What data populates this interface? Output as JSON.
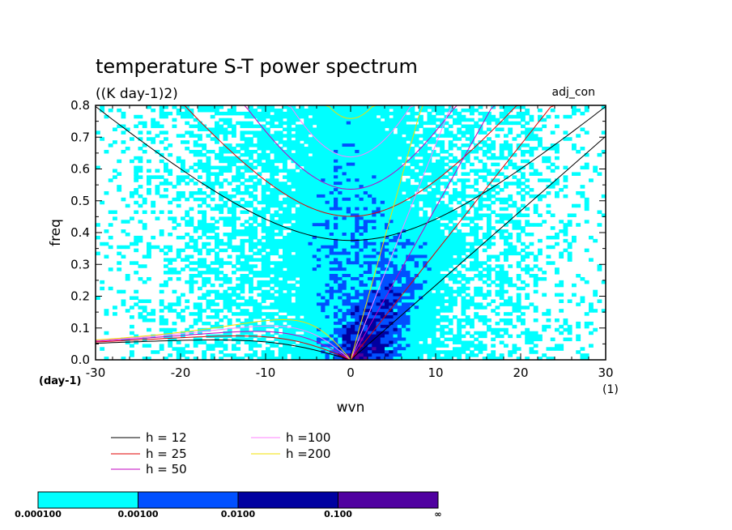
{
  "chart_data": {
    "type": "contour",
    "title": "temperature S-T power spectrum",
    "subtitle": "((K day-1)2)",
    "annotation": "adj_con",
    "xlabel": "wvn",
    "ylabel": "freq",
    "x_unit": "(1)",
    "y_unit": "(day-1)",
    "xlim": [
      -30,
      30
    ],
    "ylim": [
      0,
      0.8
    ],
    "x_ticks": [
      "-30",
      "-20",
      "-10",
      "0",
      "10",
      "20",
      "30"
    ],
    "y_ticks": [
      "0.0",
      "0.1",
      "0.2",
      "0.3",
      "0.4",
      "0.5",
      "0.6",
      "0.7",
      "0.8"
    ],
    "dispersion_curves": [
      {
        "name": "h = 12",
        "h": 12,
        "color": "#000000"
      },
      {
        "name": "h = 25",
        "h": 25,
        "color": "#e00000"
      },
      {
        "name": "h = 50",
        "h": 50,
        "color": "#c000c0"
      },
      {
        "name": "h =100",
        "h": 100,
        "color": "#ff80ff"
      },
      {
        "name": "h =200",
        "h": 200,
        "color": "#f0e000"
      }
    ],
    "colorbar": {
      "levels": [
        "0.000100",
        "0.00100",
        "0.0100",
        "0.100",
        "∞"
      ],
      "colors": [
        "#00ffff",
        "#0050ff",
        "#0000a0",
        "#5000a0"
      ]
    }
  }
}
